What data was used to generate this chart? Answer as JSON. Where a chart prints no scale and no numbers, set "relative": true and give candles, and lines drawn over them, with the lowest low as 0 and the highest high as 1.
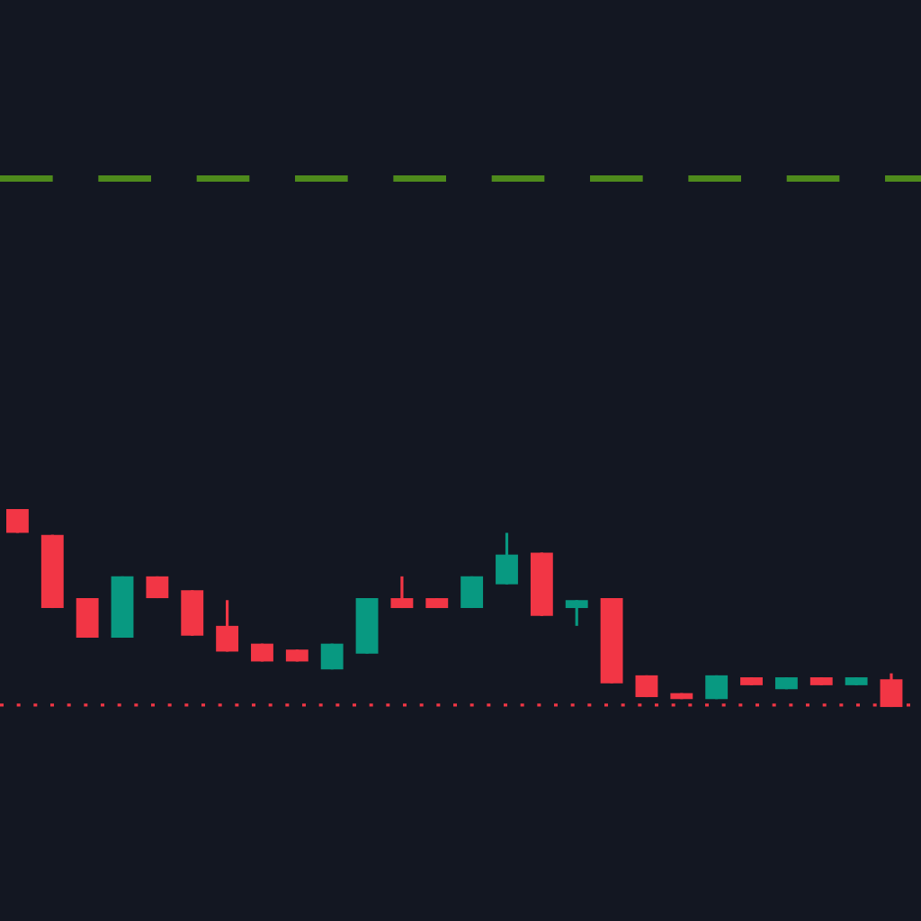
{
  "chart_data": {
    "type": "candlestick",
    "relative": true,
    "categories": [
      null,
      null,
      null,
      null,
      null,
      null,
      null,
      null,
      null,
      null,
      null,
      null,
      null,
      null,
      null,
      null,
      null,
      null,
      null,
      null,
      null,
      null,
      null,
      null,
      null,
      null
    ],
    "ohlc": [
      [
        1.0,
        1.0,
        0.88,
        0.88
      ],
      [
        0.87,
        0.87,
        0.5,
        0.5
      ],
      [
        0.55,
        0.55,
        0.35,
        0.35
      ],
      [
        0.35,
        0.66,
        0.35,
        0.66
      ],
      [
        0.66,
        0.66,
        0.55,
        0.55
      ],
      [
        0.59,
        0.59,
        0.36,
        0.36
      ],
      [
        0.41,
        0.54,
        0.28,
        0.28
      ],
      [
        0.32,
        0.32,
        0.23,
        0.23
      ],
      [
        0.29,
        0.29,
        0.23,
        0.23
      ],
      [
        0.19,
        0.32,
        0.19,
        0.32
      ],
      [
        0.27,
        0.55,
        0.27,
        0.55
      ],
      [
        0.55,
        0.66,
        0.5,
        0.5
      ],
      [
        0.55,
        0.55,
        0.5,
        0.5
      ],
      [
        0.5,
        0.66,
        0.5,
        0.66
      ],
      [
        0.62,
        0.88,
        0.62,
        0.77
      ],
      [
        0.78,
        0.78,
        0.46,
        0.46
      ],
      [
        0.5,
        0.54,
        0.41,
        0.54
      ],
      [
        0.55,
        0.55,
        0.12,
        0.12
      ],
      [
        0.16,
        0.16,
        0.05,
        0.05
      ],
      [
        0.07,
        0.07,
        0.04,
        0.04
      ],
      [
        0.04,
        0.16,
        0.04,
        0.16
      ],
      [
        0.15,
        0.15,
        0.11,
        0.11
      ],
      [
        0.09,
        0.15,
        0.09,
        0.15
      ],
      [
        0.15,
        0.15,
        0.11,
        0.11
      ],
      [
        0.11,
        0.15,
        0.11,
        0.15
      ],
      [
        0.14,
        0.17,
        0.0,
        0.0
      ]
    ],
    "colors": [
      "#f23645",
      "#f23645",
      "#f23645",
      "#089981",
      "#f23645",
      "#f23645",
      "#f23645",
      "#f23645",
      "#f23645",
      "#089981",
      "#089981",
      "#f23645",
      "#f23645",
      "#089981",
      "#089981",
      "#f23645",
      "#089981",
      "#f23645",
      "#f23645",
      "#f23645",
      "#089981",
      "#f23645",
      "#089981",
      "#f23645",
      "#089981",
      "#f23645"
    ],
    "ref_lines": [
      {
        "axis": "y",
        "value": 2.67,
        "label": null,
        "color": "#4e8a1c",
        "line_style": "dashed"
      },
      {
        "axis": "y",
        "value": 0.01,
        "label": null,
        "color": "#f23645",
        "line_style": "dotted"
      }
    ]
  }
}
